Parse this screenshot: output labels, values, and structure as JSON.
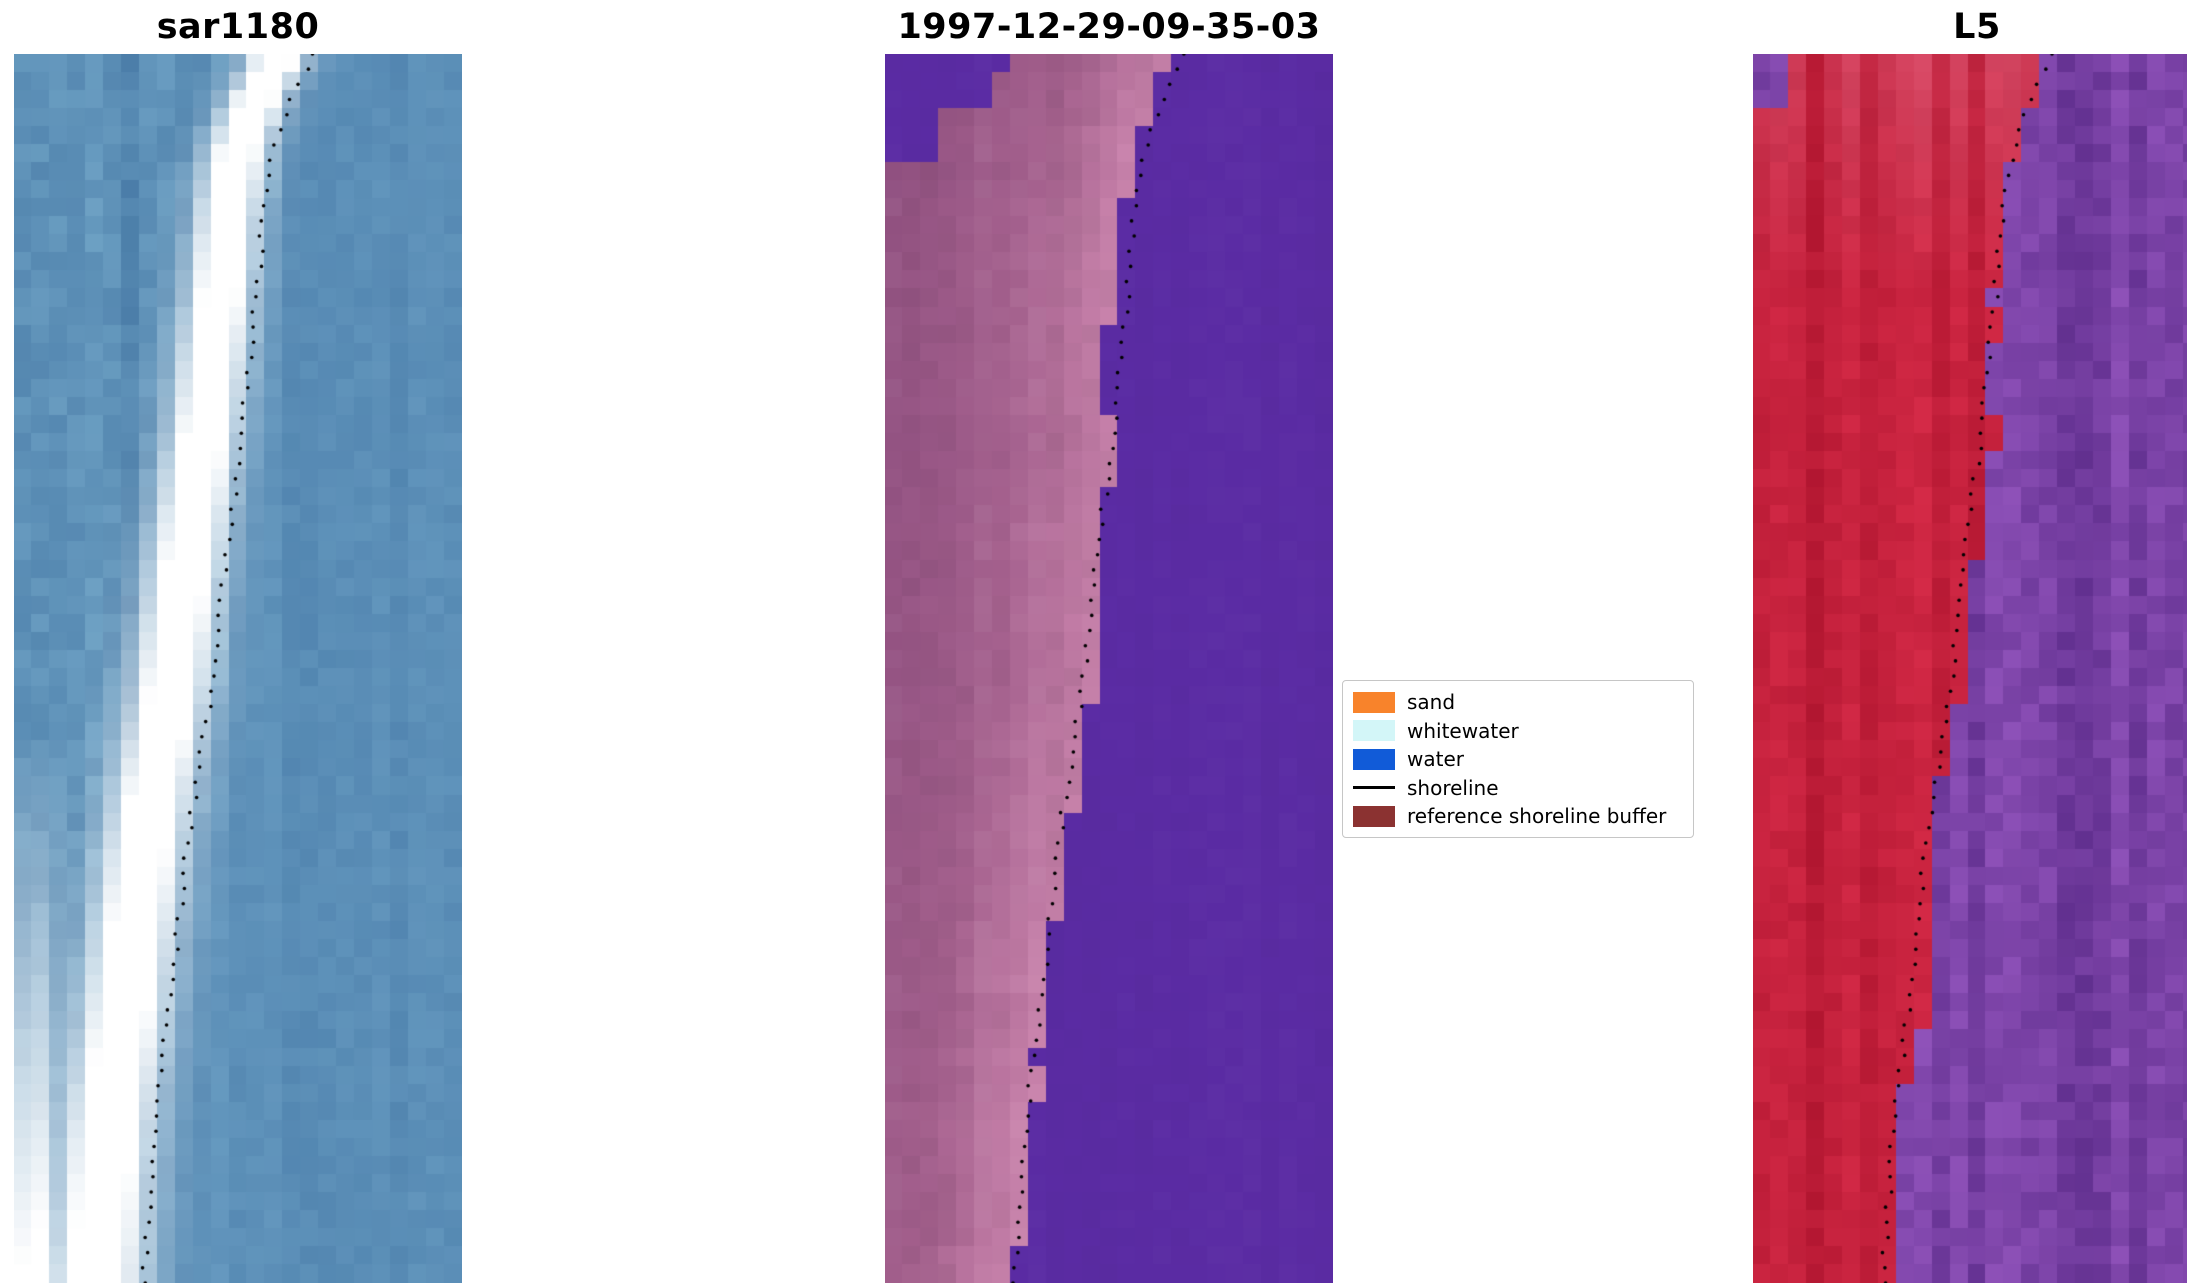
{
  "figure": {
    "background": "#ffffff"
  },
  "panels": [
    {
      "id": "sar",
      "title": "sar1180",
      "type": "sar"
    },
    {
      "id": "classification",
      "title": "1997-12-29-09-35-03",
      "type": "classification"
    },
    {
      "id": "l5",
      "title": "L5",
      "type": "l5"
    }
  ],
  "legend": {
    "items": [
      {
        "label": "sand",
        "swatch": "patch",
        "color": "#f8832b"
      },
      {
        "label": "whitewater",
        "swatch": "patch",
        "color": "#d3f6f8"
      },
      {
        "label": "water",
        "swatch": "patch",
        "color": "#115bd8"
      },
      {
        "label": "shoreline",
        "swatch": "line",
        "color": "#000000"
      },
      {
        "label": "reference shoreline buffer",
        "swatch": "patch",
        "color": "#8b3231"
      }
    ]
  },
  "shoreline": {
    "color": "#000000",
    "dot_count": 82,
    "points": [
      [
        0,
        0.67
      ],
      [
        0.04,
        0.615
      ],
      [
        0.08,
        0.578
      ],
      [
        0.13,
        0.557
      ],
      [
        0.19,
        0.543
      ],
      [
        0.3,
        0.511
      ],
      [
        0.41,
        0.474
      ],
      [
        0.53,
        0.435
      ],
      [
        0.64,
        0.388
      ],
      [
        0.76,
        0.352
      ],
      [
        0.87,
        0.315
      ],
      [
        0.93,
        0.303
      ],
      [
        1,
        0.29
      ]
    ]
  },
  "palettes": {
    "sar": {
      "deep": "#3c6e9d",
      "mid": "#5b8fb9",
      "light": "#7fb3d2",
      "bright": "#ffffff"
    },
    "classification": {
      "water": "#5b2ca4",
      "buffer_light": "#c983ac",
      "buffer_mid": "#a5618e",
      "buffer_dark": "#8c4d7e"
    },
    "l5": {
      "red_dark": "#a50f28",
      "red_bright": "#e23250",
      "pink": "#e27a95",
      "purple_dark": "#5f2e8d",
      "purple_light": "#9355bd"
    }
  },
  "chart_data": [
    {
      "type": "heatmap",
      "title": "sar1180",
      "description": "SAR backscatter tile: blue water texture with a bright white diagonal shoreline band; dotted black mapped shoreline overlaid",
      "shoreline_series": [
        [
          0,
          0.67
        ],
        [
          0.08,
          0.578
        ],
        [
          0.19,
          0.543
        ],
        [
          0.3,
          0.511
        ],
        [
          0.41,
          0.474
        ],
        [
          0.53,
          0.435
        ],
        [
          0.64,
          0.388
        ],
        [
          0.76,
          0.352
        ],
        [
          0.87,
          0.315
        ],
        [
          1,
          0.29
        ]
      ]
    },
    {
      "type": "heatmap",
      "title": "1997-12-29-09-35-03",
      "description": "Classified optical tile: purple water region to the right of the shoreline, pink/mauve reference shoreline buffer to the left; dotted black shoreline overlaid",
      "legend_entries": [
        "sand",
        "whitewater",
        "water",
        "shoreline",
        "reference shoreline buffer"
      ],
      "legend_position": "right of panel"
    },
    {
      "type": "heatmap",
      "title": "L5",
      "description": "Landsat 5 false-colour tile: red land/beach band on the left, mottled purple water on the right; dotted black shoreline overlaid",
      "shoreline_series": [
        [
          0,
          0.67
        ],
        [
          0.19,
          0.543
        ],
        [
          0.41,
          0.474
        ],
        [
          0.64,
          0.388
        ],
        [
          0.87,
          0.315
        ],
        [
          1,
          0.29
        ]
      ]
    }
  ]
}
